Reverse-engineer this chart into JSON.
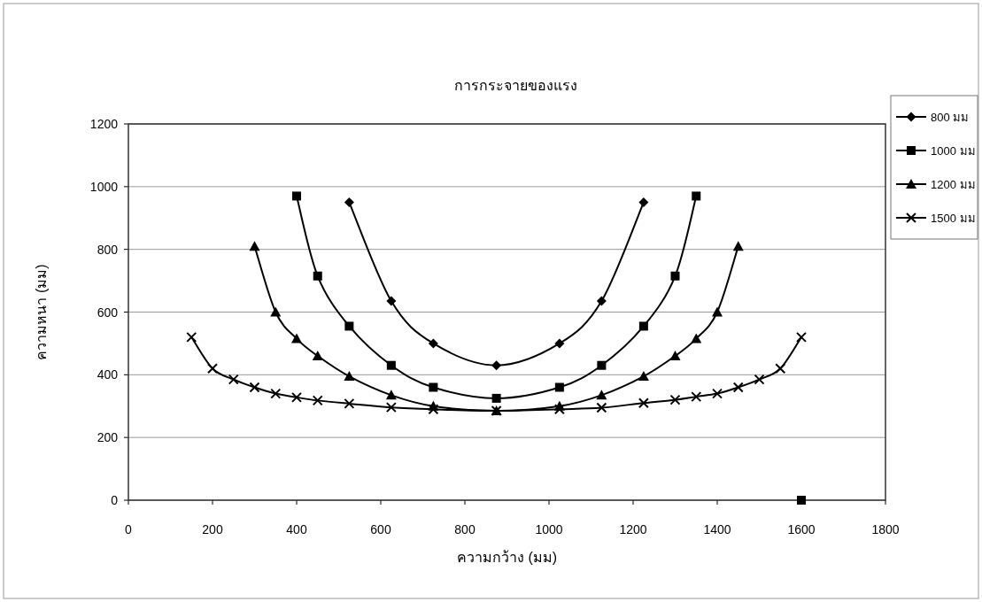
{
  "chart_data": {
    "type": "line",
    "title": "การกระจายของแรง",
    "xlabel": "ความกว้าง (มม)",
    "ylabel": "ความหนา (มม)",
    "xlim": [
      0,
      1800
    ],
    "xticks": [
      0,
      200,
      400,
      600,
      800,
      1000,
      1200,
      1400,
      1600,
      1800
    ],
    "ylim": [
      0,
      1200
    ],
    "yticks": [
      0,
      200,
      400,
      600,
      800,
      1000,
      1200
    ],
    "grid": "y",
    "legend": "top right",
    "series": [
      {
        "name": "800 มม",
        "color": "#000000",
        "marker": "diamond",
        "x": [
          525,
          625,
          725,
          875,
          1025,
          1125,
          1225
        ],
        "values": [
          950,
          635,
          500,
          430,
          500,
          635,
          950
        ]
      },
      {
        "name": "1000 มม",
        "color": "#000000",
        "marker": "square",
        "x": [
          400,
          450,
          525,
          625,
          725,
          875,
          1025,
          1125,
          1225,
          1300,
          1350
        ],
        "values": [
          970,
          715,
          555,
          430,
          360,
          325,
          360,
          430,
          555,
          715,
          970
        ]
      },
      {
        "name": "1200 มม",
        "color": "#000000",
        "marker": "triangle",
        "x": [
          300,
          350,
          400,
          450,
          525,
          625,
          725,
          875,
          1025,
          1125,
          1225,
          1300,
          1350,
          1400,
          1450
        ],
        "values": [
          810,
          600,
          515,
          460,
          395,
          335,
          300,
          285,
          300,
          335,
          395,
          460,
          515,
          600,
          810
        ]
      },
      {
        "name": "1500 มม",
        "color": "#000000",
        "marker": "cross",
        "x": [
          150,
          200,
          250,
          300,
          350,
          400,
          450,
          525,
          625,
          725,
          875,
          1025,
          1125,
          1225,
          1300,
          1350,
          1400,
          1450,
          1500,
          1550,
          1600
        ],
        "values": [
          520,
          420,
          385,
          360,
          340,
          328,
          318,
          308,
          296,
          290,
          285,
          290,
          295,
          310,
          320,
          330,
          340,
          360,
          385,
          420,
          520
        ]
      },
      {
        "type": "scatter",
        "color": "#000000",
        "marker": "square",
        "x": [
          1600
        ],
        "values": [
          0
        ]
      }
    ]
  }
}
